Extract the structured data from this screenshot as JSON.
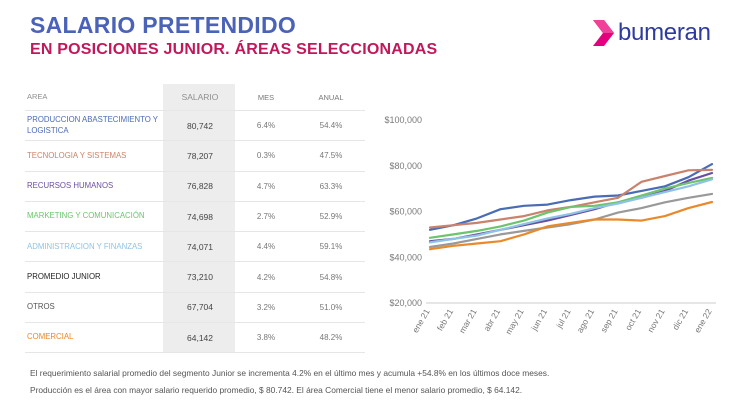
{
  "header": {
    "title": "SALARIO PRETENDIDO",
    "subtitle": "EN POSICIONES JUNIOR. ÁREAS SELECCIONADAS"
  },
  "brand": {
    "name": "bumeran",
    "accent": "#e4007c",
    "primary": "#2f3b9c"
  },
  "table": {
    "headers": [
      "AREA",
      "SALARIO",
      "MES",
      "ANUAL"
    ],
    "rows": [
      {
        "area": "PRODUCCION ABASTECIMIENTO Y LOGISTICA",
        "salario": "80,742",
        "mes": "6.4%",
        "anual": "54.4%",
        "color": "#4a6bb5"
      },
      {
        "area": "TECNOLOGIA Y SISTEMAS",
        "salario": "78,207",
        "mes": "0.3%",
        "anual": "47.5%",
        "color": "#c9826b"
      },
      {
        "area": "RECURSOS HUMANOS",
        "salario": "76,828",
        "mes": "4.7%",
        "anual": "63.3%",
        "color": "#6a4ea1"
      },
      {
        "area": "MARKETING Y COMUNICACIÓN",
        "salario": "74,698",
        "mes": "2.7%",
        "anual": "52.9%",
        "color": "#6cc46c"
      },
      {
        "area": "ADMINISTRACION Y FINANZAS",
        "salario": "74,071",
        "mes": "4.4%",
        "anual": "59.1%",
        "color": "#8ec3e6"
      },
      {
        "area": "PROMEDIO JUNIOR",
        "salario": "73,210",
        "mes": "4.2%",
        "anual": "54.8%",
        "color": "#222222"
      },
      {
        "area": "OTROS",
        "salario": "67,704",
        "mes": "3.2%",
        "anual": "51.0%",
        "color": "#555555"
      },
      {
        "area": "COMERCIAL",
        "salario": "64,142",
        "mes": "3.8%",
        "anual": "48.2%",
        "color": "#e8892b"
      }
    ]
  },
  "chart_data": {
    "type": "line",
    "title": "",
    "xlabel": "",
    "ylabel": "",
    "x": [
      "ene 21",
      "feb 21",
      "mar 21",
      "abr 21",
      "may 21",
      "jun 21",
      "jul 21",
      "ago 21",
      "sep 21",
      "oct 21",
      "nov 21",
      "dic 21",
      "ene 22"
    ],
    "yticks": [
      "$100,000",
      "$80,000",
      "$60,000",
      "$40,000",
      "$20,000"
    ],
    "ylim": [
      20000,
      100000
    ],
    "grid": false,
    "legend": "none",
    "series": [
      {
        "color": "#4a6bb5",
        "values": [
          52000,
          54000,
          57000,
          61000,
          62500,
          63000,
          65000,
          66500,
          67000,
          69000,
          71000,
          75000,
          80742
        ]
      },
      {
        "color": "#c9826b",
        "values": [
          53000,
          54000,
          55000,
          56500,
          58000,
          60500,
          62000,
          64000,
          66000,
          73000,
          75500,
          78000,
          78207
        ]
      },
      {
        "color": "#6a4ea1",
        "values": [
          47000,
          48000,
          50000,
          52000,
          54000,
          56000,
          58500,
          61000,
          64000,
          66000,
          69000,
          73500,
          76828
        ]
      },
      {
        "color": "#6cc46c",
        "values": [
          48500,
          50000,
          51500,
          53500,
          56000,
          59500,
          62000,
          62500,
          64000,
          67000,
          70000,
          72500,
          74698
        ]
      },
      {
        "color": "#8ec3e6",
        "values": [
          46500,
          48000,
          49500,
          52000,
          54500,
          57000,
          59000,
          61500,
          63500,
          66000,
          68500,
          71000,
          74071
        ]
      },
      {
        "color": "#999999",
        "values": [
          44500,
          46000,
          48000,
          50000,
          51500,
          53000,
          54500,
          56500,
          59500,
          61500,
          64000,
          66000,
          67704
        ]
      },
      {
        "color": "#e8892b",
        "values": [
          43500,
          45000,
          46000,
          47000,
          50000,
          53500,
          55000,
          56500,
          56500,
          56000,
          58000,
          61500,
          64142
        ]
      }
    ]
  },
  "footer": {
    "line1": "El requerimiento salarial promedio del segmento Junior se incrementa 4.2% en el último mes y acumula +54.8% en los últimos doce meses.",
    "line2": "Producción es el área con mayor salario requerido promedio, $ 80.742. El área Comercial tiene el menor salario promedio, $ 64.142."
  }
}
